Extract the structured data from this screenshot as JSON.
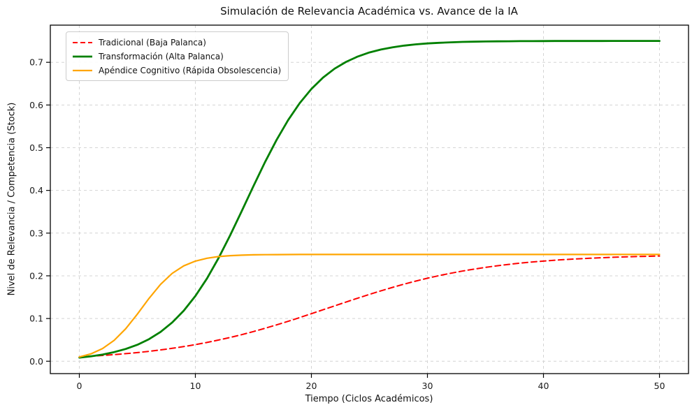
{
  "chart_data": {
    "type": "line",
    "title": "Simulación de Relevancia Académica vs. Avance de la IA",
    "xlabel": "Tiempo (Ciclos Académicos)",
    "ylabel": "Nivel de Relevancia / Competencia (Stock)",
    "grid": true,
    "legend_position": "upper-left",
    "x_ticks": [
      0,
      10,
      20,
      30,
      40,
      50
    ],
    "y_ticks": [
      0.0,
      0.1,
      0.2,
      0.3,
      0.4,
      0.5,
      0.6,
      0.7
    ],
    "xlim": [
      -2.5,
      52.5
    ],
    "ylim": [
      -0.029,
      0.787
    ],
    "x": [
      0,
      1,
      2,
      3,
      4,
      5,
      6,
      7,
      8,
      9,
      10,
      11,
      12,
      13,
      14,
      15,
      16,
      17,
      18,
      19,
      20,
      21,
      22,
      23,
      24,
      25,
      26,
      27,
      28,
      29,
      30,
      31,
      32,
      33,
      34,
      35,
      36,
      37,
      38,
      39,
      40,
      41,
      42,
      43,
      44,
      45,
      46,
      47,
      48,
      49,
      50
    ],
    "series": [
      {
        "name": "Tradicional (Baja Palanca)",
        "color": "#ff0000",
        "style": "dashed",
        "width": 2,
        "values": [
          0.0102,
          0.0117,
          0.0135,
          0.0155,
          0.0177,
          0.0203,
          0.0232,
          0.0265,
          0.0302,
          0.0343,
          0.0389,
          0.044,
          0.0496,
          0.0557,
          0.0623,
          0.0694,
          0.0771,
          0.0851,
          0.0935,
          0.1023,
          0.1113,
          0.1204,
          0.1296,
          0.1387,
          0.1477,
          0.1565,
          0.1649,
          0.1729,
          0.1806,
          0.1877,
          0.1943,
          0.2004,
          0.206,
          0.2111,
          0.2157,
          0.2198,
          0.2235,
          0.2268,
          0.2297,
          0.2323,
          0.2345,
          0.2365,
          0.2383,
          0.2398,
          0.2412,
          0.2423,
          0.2434,
          0.2442,
          0.245,
          0.2457,
          0.2463
        ]
      },
      {
        "name": "Transformación (Alta Palanca)",
        "color": "#008000",
        "style": "solid",
        "width": 2.8,
        "values": [
          0.0085,
          0.0116,
          0.0157,
          0.0213,
          0.0287,
          0.0386,
          0.0517,
          0.0687,
          0.0907,
          0.1184,
          0.1527,
          0.1938,
          0.2416,
          0.2949,
          0.3518,
          0.4097,
          0.4661,
          0.5184,
          0.5649,
          0.6047,
          0.6376,
          0.6642,
          0.6851,
          0.7011,
          0.7136,
          0.723,
          0.73,
          0.7352,
          0.7391,
          0.742,
          0.7441,
          0.7457,
          0.7468,
          0.7477,
          0.7483,
          0.7487,
          0.7491,
          0.7493,
          0.7495,
          0.7496,
          0.7497,
          0.7498,
          0.7498,
          0.7499,
          0.7499,
          0.7499,
          0.75,
          0.75,
          0.75,
          0.75,
          0.75
        ]
      },
      {
        "name": "Apéndice Cognitivo (Rápida Obsolescencia)",
        "color": "#ffa500",
        "style": "solid",
        "width": 2.2,
        "values": [
          0.0099,
          0.0173,
          0.0297,
          0.0488,
          0.0761,
          0.1103,
          0.1469,
          0.18,
          0.2056,
          0.2233,
          0.2345,
          0.2412,
          0.245,
          0.2472,
          0.2484,
          0.2491,
          0.2495,
          0.2497,
          0.2498,
          0.2499,
          0.2499,
          0.25,
          0.25,
          0.25,
          0.25,
          0.25,
          0.25,
          0.25,
          0.25,
          0.25,
          0.25,
          0.25,
          0.25,
          0.25,
          0.25,
          0.25,
          0.25,
          0.25,
          0.25,
          0.25,
          0.25,
          0.25,
          0.25,
          0.25,
          0.25,
          0.25,
          0.25,
          0.25,
          0.25,
          0.25,
          0.25
        ]
      }
    ],
    "colors": {
      "background": "#ffffff",
      "grid": "#d4d4d4",
      "spine": "#000000",
      "text": "#1a1a1a"
    }
  }
}
